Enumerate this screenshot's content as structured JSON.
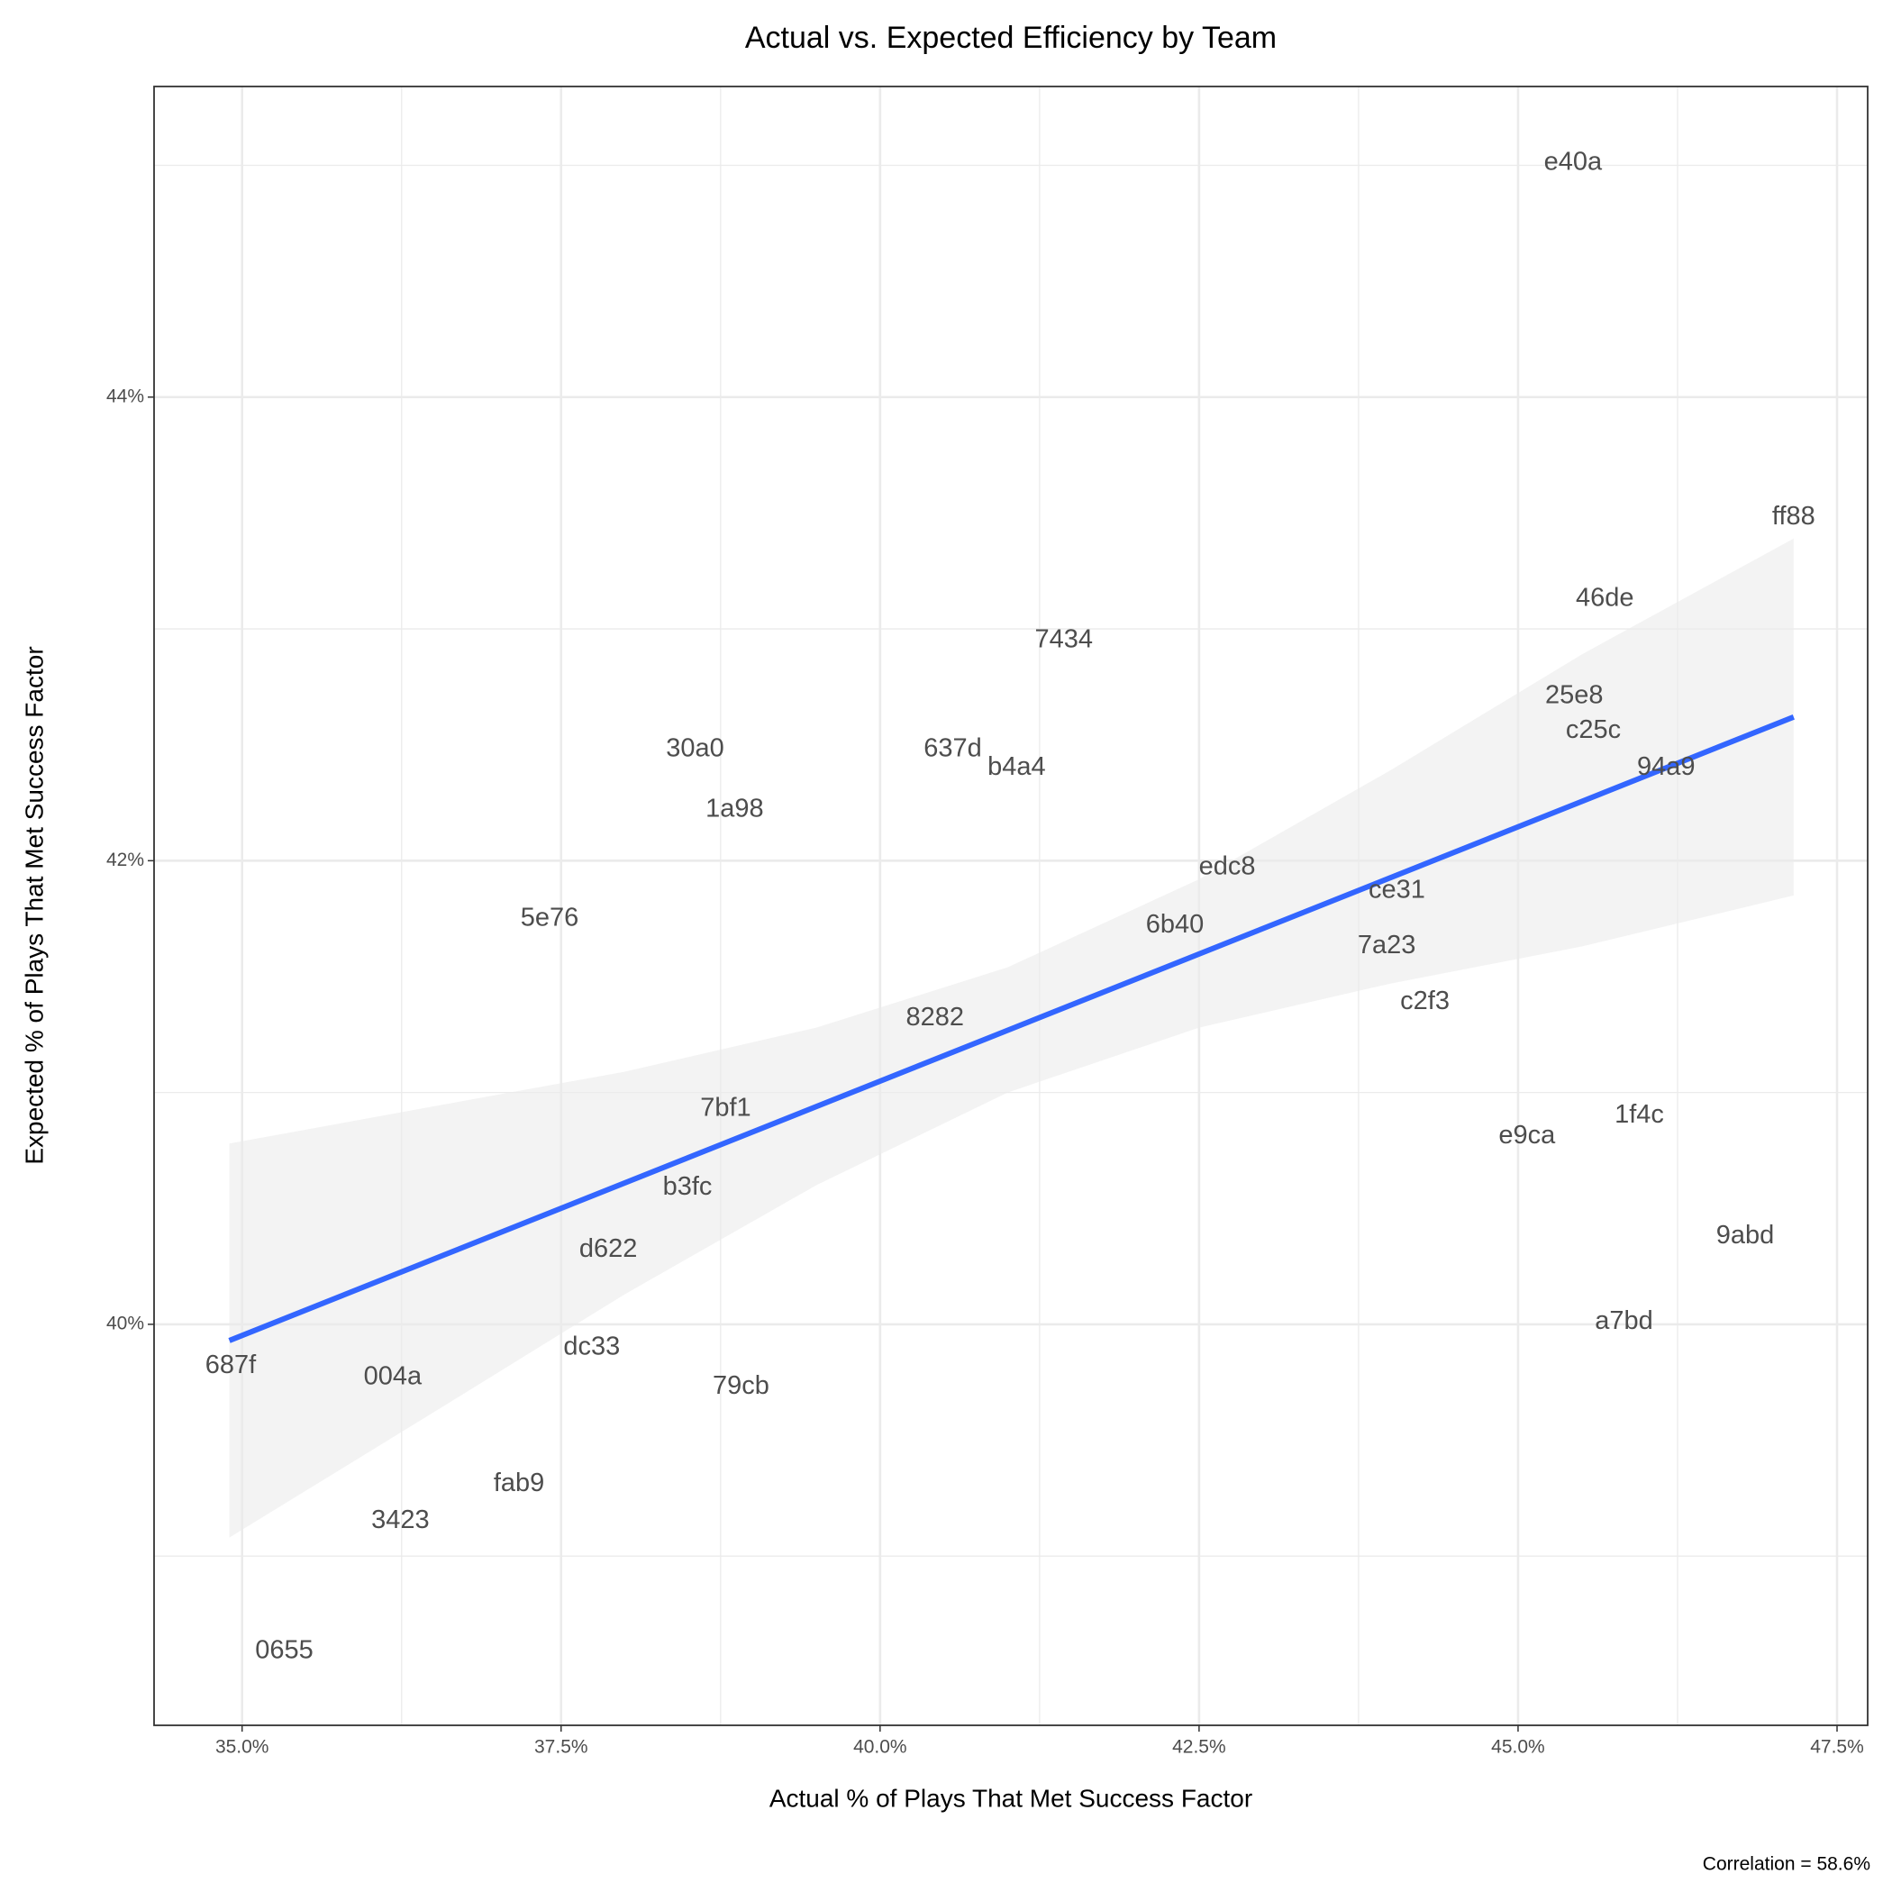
{
  "chart_data": {
    "type": "scatter",
    "title": "Actual vs. Expected Efficiency by Team",
    "x_label": "Actual % of Plays That Met Success Factor",
    "y_label": "Expected % of Plays That Met Success Factor",
    "caption": "Correlation = 58.6%",
    "xlim": [
      34.31,
      47.74
    ],
    "ylim": [
      38.27,
      45.34
    ],
    "xticks": [
      {
        "value": 35,
        "label": "35.0%"
      },
      {
        "value": 37.5,
        "label": "37.5%"
      },
      {
        "value": 40,
        "label": "40.0%"
      },
      {
        "value": 42.5,
        "label": "42.5%"
      },
      {
        "value": 45,
        "label": "45.0%"
      },
      {
        "value": 47.5,
        "label": "47.5%"
      }
    ],
    "yticks": [
      {
        "value": 40,
        "label": "40%"
      },
      {
        "value": 42,
        "label": "42%"
      },
      {
        "value": 44,
        "label": "44%"
      }
    ],
    "xminor": [
      36.25,
      38.75,
      41.25,
      43.75,
      46.25
    ],
    "yminor": [
      39,
      41,
      43,
      45
    ],
    "grid": true,
    "label_color": "#4d4d4d",
    "labels": [
      "e40a",
      "ff88",
      "46de",
      "7434",
      "25e8",
      "c25c",
      "94a9",
      "30a0",
      "637d",
      "b4a4",
      "1a98",
      "edc8",
      "ce31",
      "5e76",
      "6b40",
      "7a23",
      "c2f3",
      "8282",
      "7bf1",
      "1f4c",
      "e9ca",
      "b3fc",
      "d622",
      "9abd",
      "a7bd",
      "dc33",
      "687f",
      "004a",
      "79cb",
      "fab9",
      "3423",
      "0655"
    ],
    "x": [
      45.43,
      47.16,
      45.68,
      41.44,
      45.44,
      45.59,
      46.16,
      38.55,
      40.57,
      41.07,
      38.86,
      42.72,
      44.05,
      37.41,
      42.31,
      43.97,
      44.27,
      40.43,
      38.79,
      45.95,
      45.07,
      38.49,
      37.87,
      46.78,
      45.83,
      37.74,
      34.91,
      36.18,
      38.91,
      37.17,
      36.24,
      35.33
    ],
    "y": [
      45.01,
      43.48,
      43.13,
      42.95,
      42.71,
      42.56,
      42.4,
      42.48,
      42.48,
      42.4,
      42.22,
      41.97,
      41.87,
      41.75,
      41.72,
      41.63,
      41.39,
      41.32,
      40.93,
      40.9,
      40.81,
      40.59,
      40.32,
      40.38,
      40.01,
      39.9,
      39.82,
      39.77,
      39.73,
      39.31,
      39.15,
      38.59
    ],
    "fit": {
      "color": "#3366ff",
      "x": [
        34.9,
        47.16
      ],
      "y": [
        39.93,
        42.62
      ]
    },
    "band": {
      "color": "#ebebeb",
      "x": [
        34.9,
        36.5,
        38,
        39.5,
        41,
        42.5,
        44,
        45.5,
        47.16
      ],
      "lower": [
        39.08,
        39.62,
        40.13,
        40.6,
        41.0,
        41.28,
        41.47,
        41.63,
        41.85
      ],
      "upper": [
        40.78,
        40.94,
        41.09,
        41.28,
        41.54,
        41.92,
        42.39,
        42.89,
        43.39
      ]
    }
  }
}
